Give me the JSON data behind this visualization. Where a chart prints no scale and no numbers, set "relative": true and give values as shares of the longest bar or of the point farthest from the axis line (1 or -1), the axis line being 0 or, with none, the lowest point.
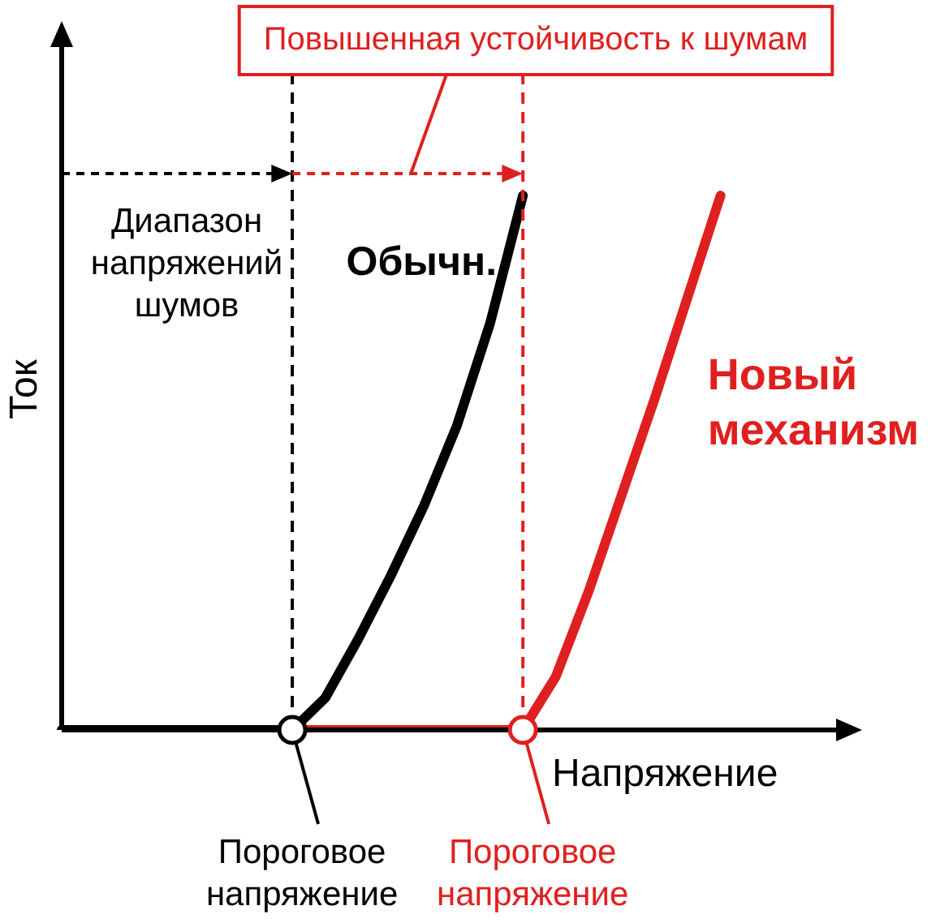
{
  "chart_data": {
    "type": "line",
    "relative": true,
    "xlabel": "Напряжение",
    "ylabel": "Ток",
    "legend": false,
    "marker": "none",
    "line_style": "solid",
    "categories": [
      null,
      null,
      null,
      null,
      null,
      null,
      null,
      null,
      null,
      null,
      null,
      null,
      null,
      null,
      null,
      null,
      null,
      null,
      null,
      null,
      null,
      null,
      null,
      null,
      null
    ],
    "series": [
      {
        "name": "Обычн.",
        "color": "#000000",
        "values": [
          0,
          0,
          0,
          0,
          0,
          0,
          0,
          0,
          0.06,
          0.17,
          0.29,
          0.42,
          0.57,
          0.76,
          1,
          null,
          null,
          null,
          null,
          null,
          null,
          null,
          null,
          null,
          null
        ]
      },
      {
        "name": "Новый механизм",
        "color": "#e02020",
        "values": [
          null,
          null,
          null,
          null,
          null,
          null,
          null,
          0,
          0,
          0,
          0,
          0,
          0,
          0,
          0,
          0.1,
          0.26,
          0.44,
          0.62,
          0.81,
          1,
          null,
          null,
          null,
          null
        ]
      }
    ],
    "annotations": [
      "Диапазон напряжений шумов",
      "Повышенная устойчивость к шумам",
      "Пороговое напряжение",
      "Пороговое напряжение"
    ]
  }
}
